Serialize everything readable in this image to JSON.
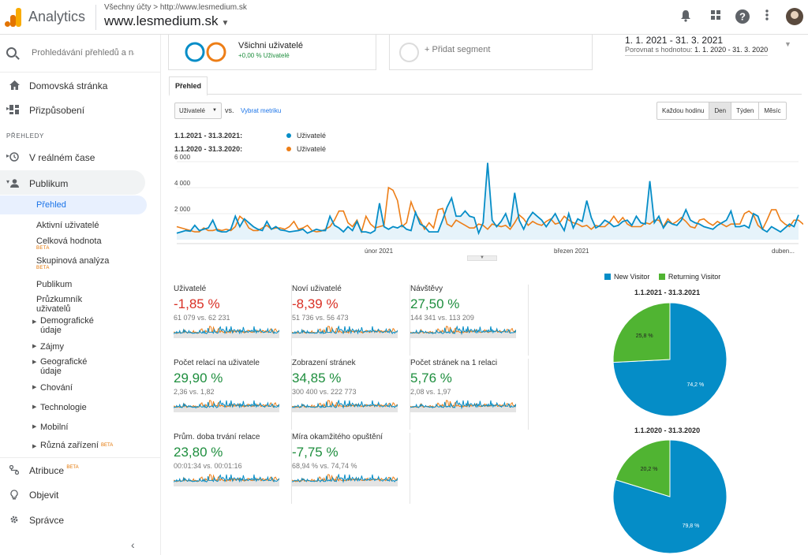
{
  "header": {
    "app_name": "Analytics",
    "breadcrumb": "Všechny účty > http://www.lesmedium.sk",
    "property": "www.lesmedium.sk"
  },
  "sidebar": {
    "search_placeholder": "Prohledávání přehledů a náp",
    "home": "Domovská stránka",
    "customize": "Přizpůsobení",
    "section": "PŘEHLEDY",
    "realtime": "V reálném čase",
    "audience": "Publikum",
    "overview": "Přehled",
    "active_users": "Aktivní uživatelé",
    "ltv": "Celková hodnota",
    "cohort": "Skupinová analýza",
    "beta": "BETA",
    "audiences": "Publikum",
    "explorer_1": "Průzkumník",
    "explorer_2": "uživatelů",
    "demographics_1": "Demografické",
    "demographics_2": "údaje",
    "interests": "Zájmy",
    "geo_1": "Geografické",
    "geo_2": "údaje",
    "behavior": "Chování",
    "technology": "Technologie",
    "mobile": "Mobilní",
    "cross_device": "Různá zařízení",
    "attribution": "Atribuce",
    "discover": "Objevit",
    "admin": "Správce"
  },
  "segments": {
    "all_users": "Všichni uživatelé",
    "all_users_sub": "+0,00 % Uživatelé",
    "add_segment": "+ Přidat segment"
  },
  "dates": {
    "range": "1. 1. 2021 - 31. 3. 2021",
    "compare_label": "Porovnat s hodnotou:",
    "compare_range": "1. 1. 2020 - 31. 3. 2020"
  },
  "tab": "Přehled",
  "controls": {
    "metric": "Uživatelé",
    "vs": "vs.",
    "select_metric": "Vybrat metriku",
    "granularity": [
      "Každou hodinu",
      "Den",
      "Týden",
      "Měsíc"
    ],
    "active": "Den"
  },
  "legend": {
    "range1": "1.1.2021 - 31.3.2021:",
    "range2": "1.1.2020 - 31.3.2020:",
    "series": "Uživatelé"
  },
  "colors": {
    "blue": "#058dc7",
    "orange": "#ed7e17",
    "green": "#50b432",
    "pos": "#1e8e3e",
    "neg": "#d93025"
  },
  "chart_data": [
    {
      "type": "line",
      "title": "",
      "y_ticks": [
        "2 000",
        "4 000",
        "6 000"
      ],
      "x_ticks": [
        "únor 2021",
        "březen 2021",
        "duben..."
      ],
      "ylim": [
        0,
        6300
      ],
      "series": [
        {
          "name": "Uživatelé",
          "values": [
            500,
            600,
            700,
            650,
            1100,
            700,
            800,
            900,
            1500,
            700,
            600,
            600,
            800,
            1800,
            1000,
            1600,
            1300,
            1000,
            800,
            700,
            1400,
            800,
            1000,
            750,
            700,
            600,
            650,
            700,
            800,
            500,
            650,
            800,
            700,
            700,
            1800,
            1100,
            900,
            600,
            1000,
            700,
            1400,
            600,
            600,
            500,
            700,
            2800,
            1000,
            800,
            1000,
            900,
            1100,
            800,
            700,
            2100,
            1200,
            1000,
            600,
            600,
            600,
            1500,
            2500,
            3200,
            1800,
            1800,
            2200,
            1800,
            1700,
            500,
            1300,
            5900,
            1500,
            1000,
            1400,
            2000,
            1000,
            3600,
            1500,
            800,
            1600,
            2100,
            1800,
            1500,
            1000,
            1500,
            2000,
            1300,
            700,
            2000,
            900,
            1600,
            1400,
            3000,
            1700,
            900,
            1100,
            1500,
            1300,
            1000,
            1100,
            1400,
            1500,
            1100,
            1800,
            1300,
            1200,
            4500,
            1300,
            1800,
            900,
            1400,
            1200,
            1100,
            1500,
            2300,
            1500,
            1300,
            1200,
            1000,
            900,
            800,
            1100,
            1300,
            1500,
            2200,
            1000,
            1000,
            1100,
            900,
            2000,
            1800,
            800,
            600,
            1000,
            800,
            600,
            900,
            1200,
            1000,
            1900
          ]
        },
        {
          "name": "Uživatelé",
          "values": [
            1000,
            900,
            800,
            700,
            600,
            600,
            900,
            700,
            700,
            800,
            700,
            800,
            700,
            1000,
            1800,
            1500,
            900,
            700,
            700,
            900,
            1100,
            800,
            900,
            900,
            800,
            1000,
            1400,
            800,
            900,
            1100,
            700,
            600,
            650,
            800,
            1000,
            1500,
            2200,
            2200,
            1300,
            1000,
            1500,
            600,
            1800,
            1200,
            900,
            1000,
            1100,
            4000,
            3800,
            3000,
            1000,
            1300,
            2900,
            2000,
            1500,
            800,
            1300,
            900,
            2300,
            2400,
            1200,
            1000,
            1500,
            1300,
            1100,
            900,
            900,
            1200,
            1100,
            800,
            1200,
            1100,
            1000,
            1100,
            800,
            1300,
            1900,
            1600,
            1100,
            1400,
            1200,
            1100,
            1400,
            1600,
            1200,
            1300,
            1800,
            1500,
            1300,
            1200,
            1000,
            1100,
            800,
            1100,
            1000,
            1000,
            1300,
            1800,
            1300,
            1700,
            1200,
            1000,
            1000,
            1000,
            1300,
            1200,
            1500,
            1500,
            1000,
            1600,
            1200,
            1400,
            1700,
            1400,
            1000,
            900,
            1500,
            1600,
            1300,
            1100,
            1400,
            1200,
            1000,
            1200,
            1200,
            1200,
            2000,
            2200,
            1900,
            1100,
            800,
            1500,
            2300,
            2300,
            1500,
            1200,
            1000,
            1500,
            1500,
            1200,
            1200,
            800
          ]
        }
      ]
    },
    {
      "type": "pie",
      "title": "1.1.2021 - 31.3.2021",
      "legend": [
        "New Visitor",
        "Returning Visitor"
      ],
      "values": [
        74.2,
        25.8
      ],
      "labels": [
        "74,2 %",
        "25,8 %"
      ]
    },
    {
      "type": "pie",
      "title": "1.1.2020 - 31.3.2020",
      "legend": [
        "New Visitor",
        "Returning Visitor"
      ],
      "values": [
        79.8,
        20.2
      ],
      "labels": [
        "79,8 %",
        "20,2 %"
      ]
    }
  ],
  "metrics": [
    {
      "title": "Uživatelé",
      "value": "-1,85 %",
      "compare": "61 079 vs. 62 231",
      "trend": "neg"
    },
    {
      "title": "Noví uživatelé",
      "value": "-8,39 %",
      "compare": "51 736 vs. 56 473",
      "trend": "neg"
    },
    {
      "title": "Návštěvy",
      "value": "27,50 %",
      "compare": "144 341 vs. 113 209",
      "trend": "pos"
    },
    {
      "title": "Počet relací na uživatele",
      "value": "29,90 %",
      "compare": "2,36 vs. 1,82",
      "trend": "pos"
    },
    {
      "title": "Zobrazení stránek",
      "value": "34,85 %",
      "compare": "300 400 vs. 222 773",
      "trend": "pos"
    },
    {
      "title": "Počet stránek na 1 relaci",
      "value": "5,76 %",
      "compare": "2,08 vs. 1,97",
      "trend": "pos"
    },
    {
      "title": "Prům. doba trvání relace",
      "value": "23,80 %",
      "compare": "00:01:34 vs. 00:01:16",
      "trend": "pos"
    },
    {
      "title": "Míra okamžitého opuštění",
      "value": "-7,75 %",
      "compare": "68,94 % vs. 74,74 %",
      "trend": "pos"
    }
  ]
}
